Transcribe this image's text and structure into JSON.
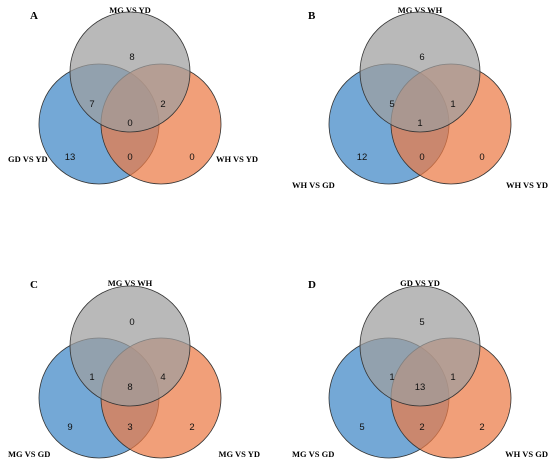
{
  "colors": {
    "top": "#9e9e9e",
    "left": "#3f86c6",
    "right": "#ec7a45",
    "stroke": "#333333"
  },
  "panels": [
    {
      "label": "A",
      "sets": {
        "top": "MG VS YD",
        "left": "GD VS YD",
        "right": "WH VS YD"
      },
      "counts": {
        "top_only": "8",
        "top_left": "7",
        "top_right": "2",
        "center": "0",
        "left_only": "13",
        "left_right": "0",
        "right_only": "0"
      }
    },
    {
      "label": "B",
      "sets": {
        "top": "MG VS WH",
        "left": "WH VS GD",
        "right": "WH VS YD"
      },
      "counts": {
        "top_only": "6",
        "top_left": "5",
        "top_right": "1",
        "center": "1",
        "left_only": "12",
        "left_right": "0",
        "right_only": "0"
      }
    },
    {
      "label": "C",
      "sets": {
        "top": "MG VS WH",
        "left": "MG VS GD",
        "right": "MG VS YD"
      },
      "counts": {
        "top_only": "0",
        "top_left": "1",
        "top_right": "4",
        "center": "8",
        "left_only": "9",
        "left_right": "3",
        "right_only": "2"
      }
    },
    {
      "label": "D",
      "sets": {
        "top": "GD VS YD",
        "left": "MG VS GD",
        "right": "WH VS GD"
      },
      "counts": {
        "top_only": "5",
        "top_left": "1",
        "top_right": "1",
        "center": "13",
        "left_only": "5",
        "left_right": "2",
        "right_only": "2"
      }
    }
  ]
}
